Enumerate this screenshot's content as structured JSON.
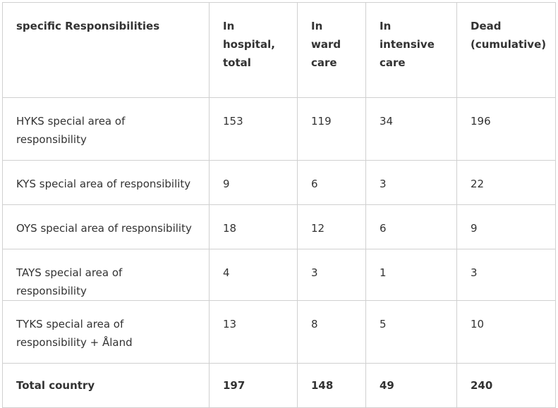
{
  "table": {
    "header": [
      "specific Responsibilities",
      "In hospital, total",
      "In ward care",
      "In intensive care",
      "Dead (cumulative)"
    ],
    "rows": [
      [
        "HYKS special area of responsibility",
        153,
        119,
        34,
        196
      ],
      [
        "KYS special area of responsibility",
        9,
        6,
        3,
        22
      ],
      [
        "OYS special area of responsibility",
        18,
        12,
        6,
        9
      ],
      [
        "TAYS special area of responsibility",
        4,
        3,
        1,
        3
      ],
      [
        "TYKS special area of responsibility + Åland",
        13,
        8,
        5,
        10
      ]
    ],
    "total": [
      "Total country",
      197,
      148,
      49,
      240
    ]
  }
}
